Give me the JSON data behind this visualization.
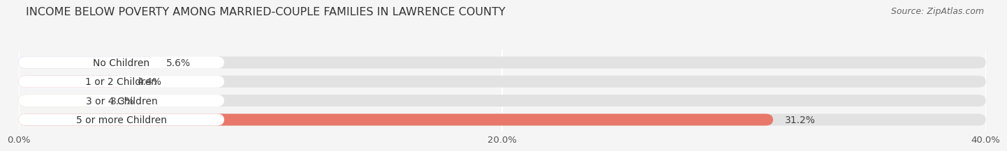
{
  "title": "INCOME BELOW POVERTY AMONG MARRIED-COUPLE FAMILIES IN LAWRENCE COUNTY",
  "source": "Source: ZipAtlas.com",
  "categories": [
    "No Children",
    "1 or 2 Children",
    "3 or 4 Children",
    "5 or more Children"
  ],
  "values": [
    5.6,
    4.4,
    3.3,
    31.2
  ],
  "bar_colors": [
    "#b3b8e0",
    "#f5a0b5",
    "#f5c98a",
    "#e8796a"
  ],
  "xlim": [
    0,
    40
  ],
  "xticks": [
    0.0,
    20.0,
    40.0
  ],
  "xtick_labels": [
    "0.0%",
    "20.0%",
    "40.0%"
  ],
  "background_color": "#f5f5f5",
  "bar_bg_color": "#e2e2e2",
  "title_fontsize": 11.5,
  "source_fontsize": 9,
  "tick_fontsize": 9.5,
  "label_fontsize": 10,
  "value_fontsize": 10
}
